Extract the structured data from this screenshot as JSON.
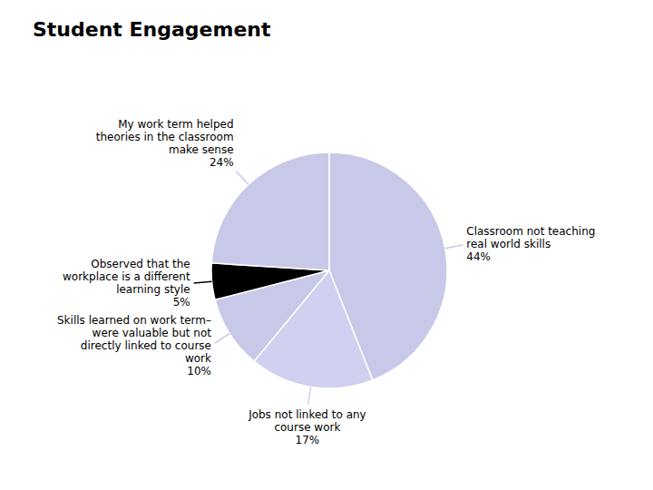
{
  "chart_data": {
    "type": "pie",
    "title": "Student Engagement",
    "categories": [
      "Classroom not teaching\nreal world skills",
      "Jobs not linked to any\ncourse work",
      "Skills learned on work term–\nwere valuable but not\ndirectly linked to course\nwork",
      "Observed that the\nworkplace is a different\nlearning style",
      "My work term helped\ntheories in the classroom\nmake sense"
    ],
    "values": [
      44,
      17,
      10,
      5,
      24
    ],
    "value_labels": [
      "44%",
      "17%",
      "10%",
      "5%",
      "24%"
    ],
    "colors": [
      "#c8c8e8",
      "#d0d0f0",
      "#c8c8e8",
      "#000000",
      "#c8c8e8"
    ]
  }
}
